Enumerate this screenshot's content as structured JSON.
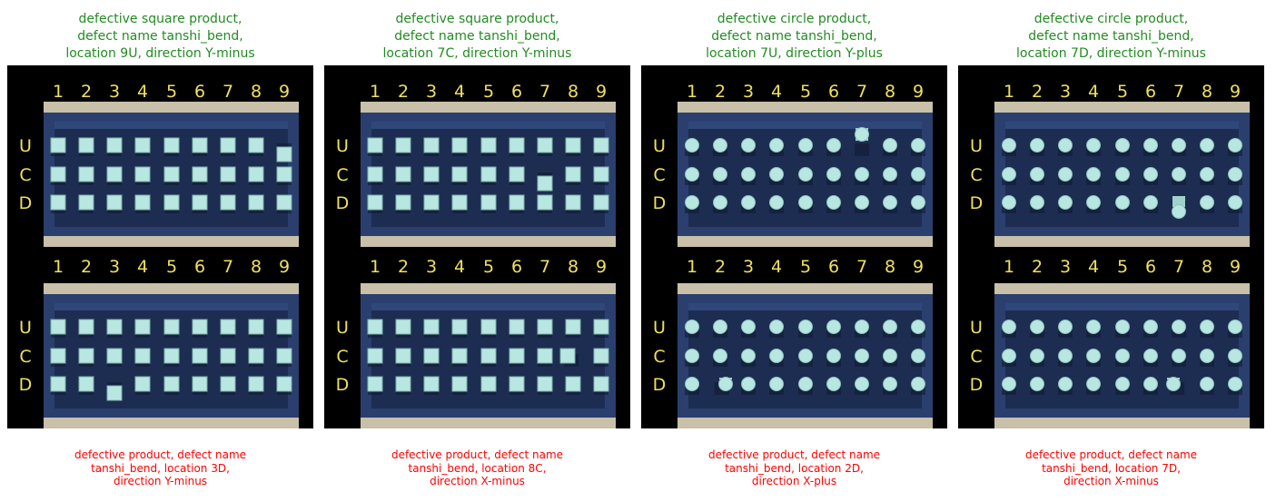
{
  "colors": {
    "title": "#228b22",
    "caption": "#ff0000",
    "grid_label": "#f0e060",
    "tray": "#2a3f6e",
    "wall": "#c8c0a8",
    "product": "#b8e6e0"
  },
  "grid_labels": {
    "columns": [
      "1",
      "2",
      "3",
      "4",
      "5",
      "6",
      "7",
      "8",
      "9"
    ],
    "rows": [
      "U",
      "C",
      "D"
    ]
  },
  "panels": [
    {
      "shape": "square",
      "title_lines": [
        "defective square product,",
        "defect name tanshi_bend,",
        "location 9U, direction Y-minus"
      ],
      "caption_lines": [
        "defective product, defect name",
        "tanshi_bend, location 3D,",
        "direction Y-minus"
      ],
      "top_defect": {
        "col": 9,
        "row": "U",
        "direction": "Y-minus"
      },
      "bottom_defect": {
        "col": 3,
        "row": "D",
        "direction": "Y-minus"
      }
    },
    {
      "shape": "square",
      "title_lines": [
        "defective square product,",
        "defect name tanshi_bend,",
        "location 7C, direction Y-minus"
      ],
      "caption_lines": [
        "defective product, defect name",
        "tanshi_bend, location 8C,",
        "direction X-minus"
      ],
      "top_defect": {
        "col": 7,
        "row": "C",
        "direction": "Y-minus"
      },
      "bottom_defect": {
        "col": 8,
        "row": "C",
        "direction": "X-minus"
      }
    },
    {
      "shape": "circle",
      "title_lines": [
        "defective circle product,",
        "defect name tanshi_bend,",
        "location 7U, direction Y-plus"
      ],
      "caption_lines": [
        "defective product, defect name",
        "tanshi_bend, location 2D,",
        "direction X-plus"
      ],
      "top_defect": {
        "col": 7,
        "row": "U",
        "direction": "Y-plus"
      },
      "bottom_defect": {
        "col": 2,
        "row": "D",
        "direction": "X-plus"
      }
    },
    {
      "shape": "circle",
      "title_lines": [
        "defective circle product,",
        "defect name tanshi_bend,",
        "location 7D, direction Y-minus"
      ],
      "caption_lines": [
        "defective product, defect name",
        "tanshi_bend, location 7D,",
        "direction X-minus"
      ],
      "top_defect": {
        "col": 7,
        "row": "D",
        "direction": "Y-minus"
      },
      "bottom_defect": {
        "col": 7,
        "row": "D",
        "direction": "X-minus"
      }
    }
  ]
}
